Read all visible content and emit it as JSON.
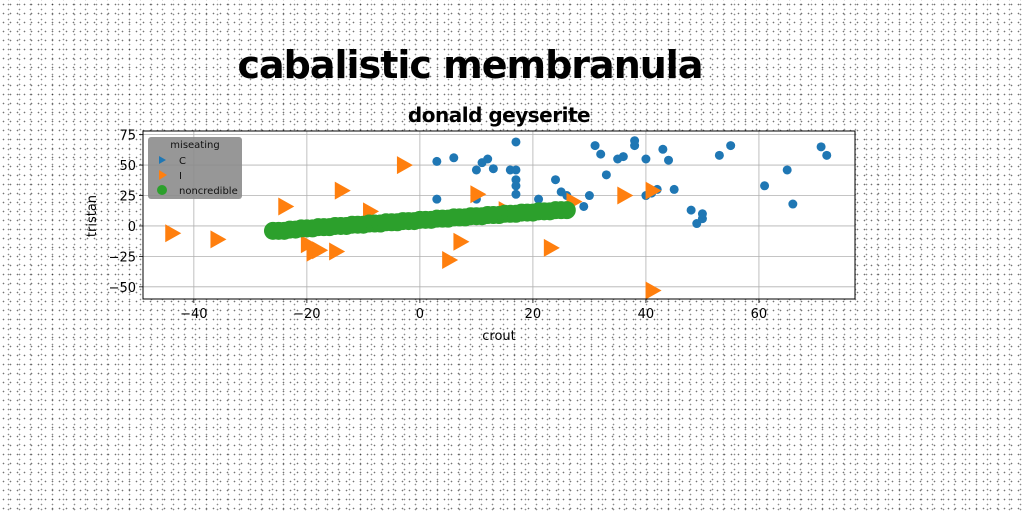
{
  "suptitle": "cabalistic membranula",
  "chart_data": {
    "type": "scatter",
    "title": "donald geyserite",
    "xlabel": "crout",
    "ylabel": "tristan",
    "xlim": [
      -49,
      77
    ],
    "ylim": [
      -60,
      78
    ],
    "xticks": [
      -40,
      -20,
      0,
      20,
      40,
      60
    ],
    "yticks": [
      -50,
      -25,
      0,
      25,
      50,
      75
    ],
    "grid": true,
    "legend": {
      "title": "miseating",
      "placement": "top-left"
    },
    "series": [
      {
        "name": "C",
        "marker": "circle",
        "color": "#1f77b4",
        "points": [
          [
            3,
            53
          ],
          [
            6,
            56
          ],
          [
            3,
            22
          ],
          [
            10,
            22
          ],
          [
            10,
            46
          ],
          [
            11,
            52
          ],
          [
            12,
            55
          ],
          [
            13,
            47
          ],
          [
            16,
            46
          ],
          [
            17,
            26
          ],
          [
            17,
            33
          ],
          [
            17,
            38
          ],
          [
            17,
            46
          ],
          [
            17,
            69
          ],
          [
            21,
            22
          ],
          [
            24,
            38
          ],
          [
            25,
            28
          ],
          [
            26,
            25
          ],
          [
            29,
            16
          ],
          [
            30,
            25
          ],
          [
            31,
            66
          ],
          [
            32,
            59
          ],
          [
            33,
            42
          ],
          [
            35,
            55
          ],
          [
            36,
            57
          ],
          [
            38,
            66
          ],
          [
            38,
            70
          ],
          [
            40,
            55
          ],
          [
            40,
            25
          ],
          [
            41,
            27
          ],
          [
            42,
            30
          ],
          [
            43,
            63
          ],
          [
            44,
            54
          ],
          [
            45,
            30
          ],
          [
            48,
            13
          ],
          [
            49,
            2
          ],
          [
            50,
            6
          ],
          [
            50,
            10
          ],
          [
            53,
            58
          ],
          [
            55,
            66
          ],
          [
            61,
            33
          ],
          [
            65,
            46
          ],
          [
            66,
            18
          ],
          [
            71,
            65
          ],
          [
            72,
            58
          ]
        ]
      },
      {
        "name": "I",
        "marker": "triangle-right",
        "color": "#ff7f0e",
        "points": [
          [
            -44,
            -6
          ],
          [
            -36,
            -11
          ],
          [
            -24,
            16
          ],
          [
            -20,
            -15
          ],
          [
            -19,
            -22
          ],
          [
            -18,
            -20
          ],
          [
            -15,
            -21
          ],
          [
            -14,
            29
          ],
          [
            -9,
            12
          ],
          [
            -3,
            50
          ],
          [
            5,
            -28
          ],
          [
            7,
            -13
          ],
          [
            10,
            26
          ],
          [
            15,
            13
          ],
          [
            23,
            -18
          ],
          [
            27,
            20
          ],
          [
            36,
            25
          ],
          [
            41,
            29
          ],
          [
            41,
            -53
          ]
        ]
      },
      {
        "name": "noncredible",
        "marker": "circle",
        "color": "#2ca02c",
        "points": [
          [
            -26,
            -4
          ],
          [
            -25,
            -4
          ],
          [
            -24,
            -4
          ],
          [
            -23,
            -3
          ],
          [
            -22,
            -3
          ],
          [
            -21,
            -2
          ],
          [
            -20,
            -2
          ],
          [
            -19,
            -2
          ],
          [
            -18,
            -1
          ],
          [
            -17,
            -1
          ],
          [
            -16,
            -1
          ],
          [
            -15,
            0
          ],
          [
            -14,
            0
          ],
          [
            -13,
            0
          ],
          [
            -12,
            1
          ],
          [
            -11,
            1
          ],
          [
            -10,
            1
          ],
          [
            -9,
            2
          ],
          [
            -8,
            2
          ],
          [
            -7,
            2
          ],
          [
            -6,
            3
          ],
          [
            -5,
            3
          ],
          [
            -4,
            3
          ],
          [
            -3,
            4
          ],
          [
            -2,
            4
          ],
          [
            -1,
            4
          ],
          [
            0,
            5
          ],
          [
            1,
            5
          ],
          [
            2,
            5
          ],
          [
            3,
            6
          ],
          [
            4,
            6
          ],
          [
            5,
            6
          ],
          [
            6,
            7
          ],
          [
            7,
            7
          ],
          [
            8,
            7
          ],
          [
            9,
            8
          ],
          [
            10,
            8
          ],
          [
            11,
            8
          ],
          [
            12,
            9
          ],
          [
            13,
            9
          ],
          [
            14,
            9
          ],
          [
            15,
            10
          ],
          [
            16,
            10
          ],
          [
            17,
            10
          ],
          [
            18,
            11
          ],
          [
            19,
            11
          ],
          [
            20,
            11
          ],
          [
            21,
            12
          ],
          [
            22,
            12
          ],
          [
            23,
            12
          ],
          [
            24,
            13
          ],
          [
            25,
            13
          ],
          [
            26,
            13
          ]
        ]
      }
    ]
  }
}
